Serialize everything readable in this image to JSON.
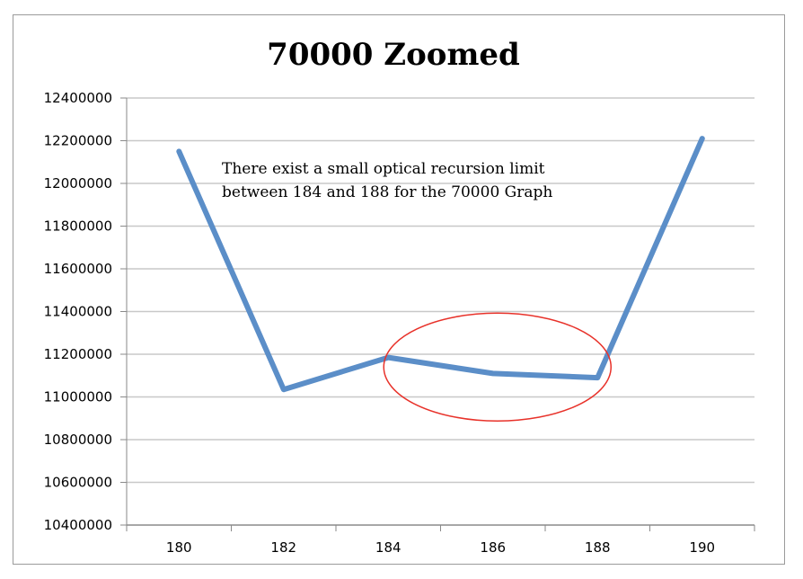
{
  "chart_data": {
    "type": "line",
    "title": "70000 Zoomed",
    "xlabel": "",
    "ylabel": "",
    "categories": [
      "180",
      "182",
      "184",
      "186",
      "188",
      "190"
    ],
    "series": [
      {
        "values": [
          12150000,
          11035000,
          11185000,
          11110000,
          11090000,
          12210000
        ],
        "color": "#5b8ec8"
      }
    ],
    "ylim": [
      10400000,
      12400000
    ],
    "yticks": [
      "10400000",
      "10600000",
      "10800000",
      "11000000",
      "11200000",
      "11400000",
      "11600000",
      "11800000",
      "12000000",
      "12200000",
      "12400000"
    ],
    "grid": true,
    "legend": "none",
    "annotations": [
      {
        "text_lines": [
          "There exist a small optical recursion limit",
          "between 184 and 188 for the 70000 Graph"
        ]
      }
    ],
    "highlight": {
      "shape": "ellipse",
      "color": "#e8322a",
      "x_range": [
        "184",
        "188"
      ]
    },
    "colors": {
      "grid": "#c8c8c8",
      "axis": "#8a8a8a",
      "line": "#5b8ec8",
      "highlight": "#e8322a"
    }
  }
}
